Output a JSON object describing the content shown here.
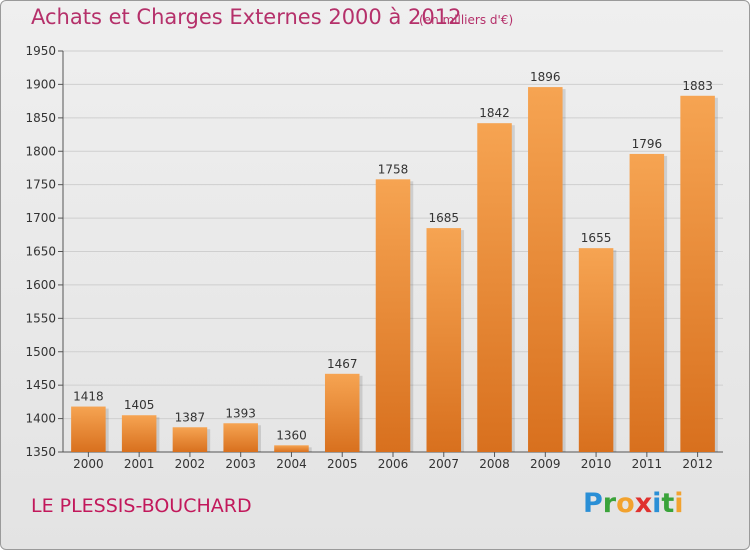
{
  "title": "Achats et Charges Externes 2000 à 2012",
  "unit": "(en milliers d'€)",
  "commune": "LE PLESSIS-BOUCHARD",
  "logo": {
    "letters": [
      "P",
      "r",
      "o",
      "x",
      "i",
      "t",
      "i"
    ],
    "colors": [
      "#2a8fd6",
      "#3aa33a",
      "#f2a22e",
      "#e0312e",
      "#2a8fd6",
      "#3aa33a",
      "#f2a22e"
    ]
  },
  "colors": {
    "bar_top": "#f6a452",
    "bar_bottom": "#d8701e",
    "title": "#b5306a",
    "axis": "#555555"
  },
  "chart_data": {
    "type": "bar",
    "title": "Achats et Charges Externes 2000 à 2012",
    "xlabel": "",
    "ylabel": "",
    "categories": [
      "2000",
      "2001",
      "2002",
      "2003",
      "2004",
      "2005",
      "2006",
      "2007",
      "2008",
      "2009",
      "2010",
      "2011",
      "2012"
    ],
    "values": [
      1418,
      1405,
      1387,
      1393,
      1360,
      1467,
      1758,
      1685,
      1842,
      1896,
      1655,
      1796,
      1883
    ],
    "ylim": [
      1350,
      1950
    ],
    "yticks": [
      1350,
      1400,
      1450,
      1500,
      1550,
      1600,
      1650,
      1700,
      1750,
      1800,
      1850,
      1900,
      1950
    ],
    "grid": true
  }
}
